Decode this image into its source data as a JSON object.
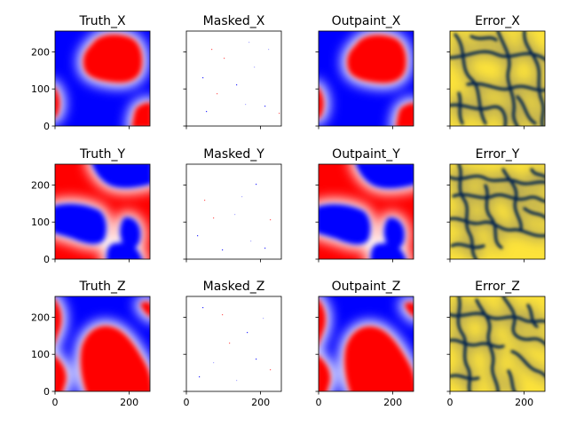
{
  "chart_data": {
    "type": "heatmap",
    "layout": "3x4 grid of image panels, shared x and y axes",
    "x_ticks": [
      "0",
      "200"
    ],
    "y_ticks": [
      "0",
      "100",
      "200"
    ],
    "xlim": [
      0,
      256
    ],
    "ylim": [
      0,
      256
    ],
    "rows": [
      "X",
      "Y",
      "Z"
    ],
    "columns": [
      "Truth",
      "Masked",
      "Outpaint",
      "Error"
    ],
    "panels": [
      {
        "title": "Truth_X",
        "colormap": "bwr",
        "content": "red blob upper-center, red corner lower-right, blue background"
      },
      {
        "title": "Masked_X",
        "colormap": "bwr",
        "content": "white field with sparse observed points"
      },
      {
        "title": "Outpaint_X",
        "colormap": "bwr",
        "content": "reconstruction resembling Truth_X"
      },
      {
        "title": "Error_X",
        "colormap": "cividis",
        "content": "yellow field with dark blue error lines"
      },
      {
        "title": "Truth_Y",
        "colormap": "bwr",
        "content": "red upper-left, red right, blue band middle-left"
      },
      {
        "title": "Masked_Y",
        "colormap": "bwr",
        "content": "white field with sparse observed points"
      },
      {
        "title": "Outpaint_Y",
        "colormap": "bwr",
        "content": "reconstruction resembling Truth_Y"
      },
      {
        "title": "Error_Y",
        "colormap": "cividis",
        "content": "yellow field with dark blue error lines"
      },
      {
        "title": "Truth_Z",
        "colormap": "bwr",
        "content": "blue upper region, large red region lower-center"
      },
      {
        "title": "Masked_Z",
        "colormap": "bwr",
        "content": "white field with sparse observed points"
      },
      {
        "title": "Outpaint_Z",
        "colormap": "bwr",
        "content": "reconstruction resembling Truth_Z"
      },
      {
        "title": "Error_Z",
        "colormap": "cividis",
        "content": "yellow field with dark blue error lines"
      }
    ],
    "colors": {
      "red": "#ff0000",
      "blue": "#0000ff",
      "white": "#ffffff",
      "error_bg": "#fde33a",
      "error_line": "#00224e"
    }
  }
}
